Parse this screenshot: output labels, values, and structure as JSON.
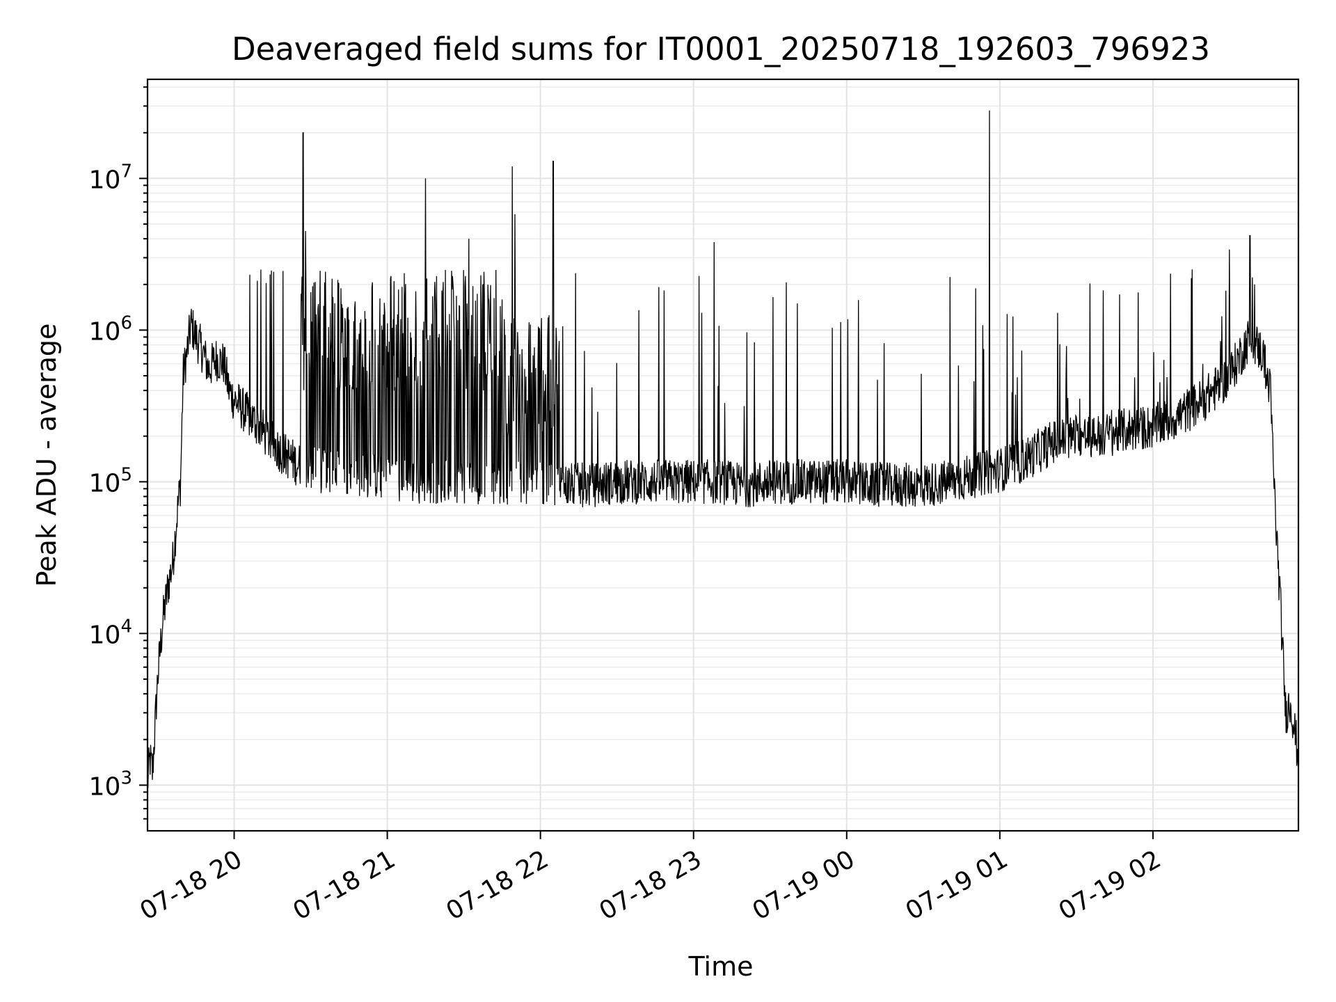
{
  "chart_data": {
    "type": "line",
    "title": "Deaveraged field sums for IT0001_20250718_192603_796923",
    "xlabel": "Time",
    "ylabel": "Peak ADU - average",
    "y_scale": "log",
    "ylim": [
      500,
      45000000
    ],
    "xlim": [
      "2025-07-18 19:26:03",
      "2025-07-19 02:57:00"
    ],
    "grid": true,
    "legend": "none",
    "line_color": "#000000",
    "x_ticks": [
      {
        "time": "2025-07-18 20:00",
        "label": "07-18 20"
      },
      {
        "time": "2025-07-18 21:00",
        "label": "07-18 21"
      },
      {
        "time": "2025-07-18 22:00",
        "label": "07-18 22"
      },
      {
        "time": "2025-07-18 23:00",
        "label": "07-18 23"
      },
      {
        "time": "2025-07-19 00:00",
        "label": "07-19 00"
      },
      {
        "time": "2025-07-19 01:00",
        "label": "07-19 01"
      },
      {
        "time": "2025-07-19 02:00",
        "label": "07-19 02"
      }
    ],
    "y_ticks": [
      {
        "value": 1000,
        "base": "10",
        "exp": "3"
      },
      {
        "value": 10000,
        "base": "10",
        "exp": "4"
      },
      {
        "value": 100000,
        "base": "10",
        "exp": "5"
      },
      {
        "value": 1000000,
        "base": "10",
        "exp": "6"
      },
      {
        "value": 10000000,
        "base": "10",
        "exp": "7"
      }
    ],
    "series": [
      {
        "points": [
          [
            "2025-07-18 19:26",
            1000
          ],
          [
            "2025-07-18 19:27",
            1500
          ],
          [
            "2025-07-18 19:28",
            1200
          ],
          [
            "2025-07-18 19:30",
            5000
          ],
          [
            "2025-07-18 19:32",
            12000
          ],
          [
            "2025-07-18 19:34",
            20000
          ],
          [
            "2025-07-18 19:36",
            30000
          ],
          [
            "2025-07-18 19:38",
            70000
          ],
          [
            "2025-07-18 19:39",
            100000
          ],
          [
            "2025-07-18 19:40",
            500000
          ],
          [
            "2025-07-18 19:42",
            800000
          ],
          [
            "2025-07-18 19:43",
            1100000
          ],
          [
            "2025-07-18 19:45",
            900000
          ],
          [
            "2025-07-18 19:48",
            700000
          ],
          [
            "2025-07-18 19:50",
            550000
          ],
          [
            "2025-07-18 19:53",
            650000
          ],
          [
            "2025-07-18 19:56",
            600000
          ],
          [
            "2025-07-18 19:58",
            400000
          ],
          [
            "2025-07-18 20:00",
            350000
          ],
          [
            "2025-07-18 20:05",
            280000
          ],
          [
            "2025-07-18 20:10",
            230000
          ],
          [
            "2025-07-18 20:15",
            180000
          ],
          [
            "2025-07-18 20:20",
            150000
          ],
          [
            "2025-07-18 20:25",
            130000
          ],
          [
            "2025-07-18 20:30",
            120000
          ],
          [
            "2025-07-18 20:40",
            115000
          ],
          [
            "2025-07-18 20:50",
            110000
          ],
          [
            "2025-07-18 21:00",
            105000
          ],
          [
            "2025-07-18 21:10",
            100000
          ],
          [
            "2025-07-18 21:20",
            100000
          ],
          [
            "2025-07-18 21:30",
            100000
          ],
          [
            "2025-07-18 21:40",
            100000
          ],
          [
            "2025-07-18 21:50",
            100000
          ],
          [
            "2025-07-18 22:00",
            100000
          ],
          [
            "2025-07-18 22:10",
            95000
          ],
          [
            "2025-07-18 22:20",
            95000
          ],
          [
            "2025-07-18 22:30",
            100000
          ],
          [
            "2025-07-18 22:40",
            100000
          ],
          [
            "2025-07-18 22:50",
            100000
          ],
          [
            "2025-07-18 23:00",
            100000
          ],
          [
            "2025-07-18 23:10",
            100000
          ],
          [
            "2025-07-18 23:20",
            95000
          ],
          [
            "2025-07-18 23:30",
            100000
          ],
          [
            "2025-07-18 23:40",
            100000
          ],
          [
            "2025-07-18 23:50",
            100000
          ],
          [
            "2025-07-19 00:00",
            100000
          ],
          [
            "2025-07-19 00:10",
            95000
          ],
          [
            "2025-07-19 00:20",
            95000
          ],
          [
            "2025-07-19 00:30",
            95000
          ],
          [
            "2025-07-19 00:40",
            100000
          ],
          [
            "2025-07-19 00:50",
            110000
          ],
          [
            "2025-07-19 01:00",
            120000
          ],
          [
            "2025-07-19 01:10",
            140000
          ],
          [
            "2025-07-19 01:20",
            180000
          ],
          [
            "2025-07-19 01:30",
            200000
          ],
          [
            "2025-07-19 01:40",
            200000
          ],
          [
            "2025-07-19 01:50",
            220000
          ],
          [
            "2025-07-19 02:00",
            230000
          ],
          [
            "2025-07-19 02:10",
            270000
          ],
          [
            "2025-07-19 02:20",
            350000
          ],
          [
            "2025-07-19 02:30",
            500000
          ],
          [
            "2025-07-19 02:38",
            900000
          ],
          [
            "2025-07-19 02:43",
            700000
          ],
          [
            "2025-07-19 02:46",
            400000
          ],
          [
            "2025-07-19 02:48",
            60000
          ],
          [
            "2025-07-19 02:50",
            15000
          ],
          [
            "2025-07-19 02:52",
            3000
          ],
          [
            "2025-07-19 02:54",
            3500
          ],
          [
            "2025-07-19 02:56",
            2000
          ],
          [
            "2025-07-19 02:57",
            1500
          ]
        ],
        "spikes": [
          [
            "2025-07-18 20:27",
            20000000
          ],
          [
            "2025-07-18 20:28",
            4500000
          ],
          [
            "2025-07-18 21:15",
            10000000
          ],
          [
            "2025-07-18 21:32",
            4000000
          ],
          [
            "2025-07-18 21:49",
            12000000
          ],
          [
            "2025-07-18 21:50",
            5800000
          ],
          [
            "2025-07-18 22:05",
            13000000
          ],
          [
            "2025-07-18 23:08",
            3800000
          ],
          [
            "2025-07-19 00:56",
            28000000
          ],
          [
            "2025-07-19 02:38",
            4200000
          ],
          [
            "2025-07-19 02:30",
            3400000
          ]
        ]
      }
    ]
  }
}
